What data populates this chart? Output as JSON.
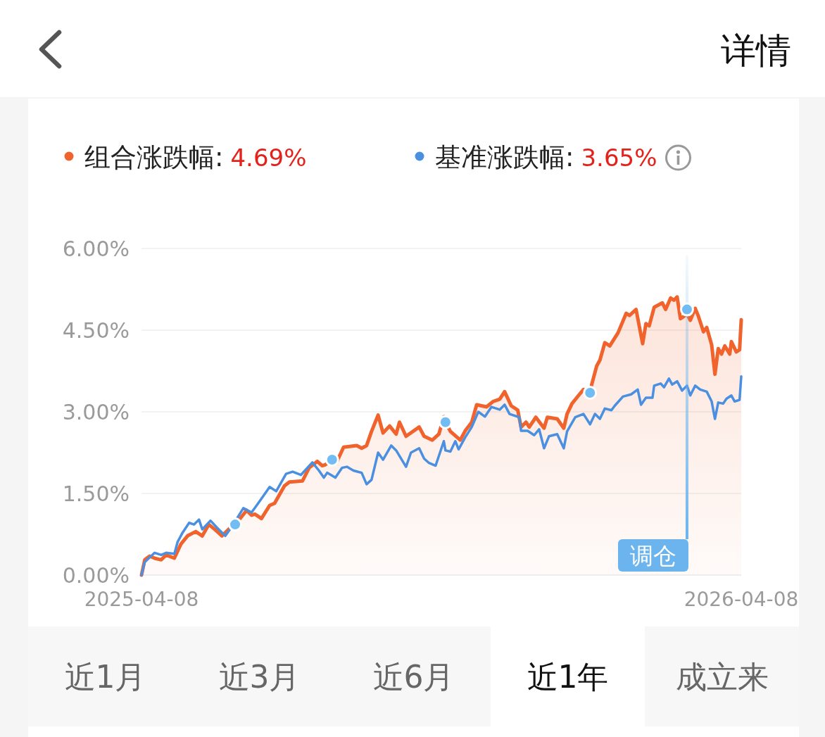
{
  "chart_data": {
    "type": "line",
    "xlim": [
      "2025-04-08",
      "2026-04-08"
    ],
    "xticks": [
      "2025-04-08",
      "2026-04-08"
    ],
    "ylim": [
      0,
      6
    ],
    "yticks": [
      {
        "value": 0,
        "label": "0.00%"
      },
      {
        "value": 1.5,
        "label": "1.50%"
      },
      {
        "value": 3,
        "label": "3.00%"
      },
      {
        "value": 4.5,
        "label": "4.50%"
      },
      {
        "value": 6,
        "label": "6.00%"
      }
    ],
    "grid": "y",
    "legend": "top left",
    "series": [
      {
        "name": "组合涨跌幅:",
        "type": "area",
        "color": "#f0632d",
        "x": [
          "2025-04-08",
          "2025-04-10",
          "2025-04-13",
          "2025-04-16",
          "2025-04-20",
          "2025-04-23",
          "2025-04-28",
          "2025-05-02",
          "2025-05-06",
          "2025-05-11",
          "2025-05-15",
          "2025-05-19",
          "2025-05-23",
          "2025-05-27",
          "2025-06-01",
          "2025-06-04",
          "2025-06-07",
          "2025-06-11",
          "2025-06-14",
          "2025-06-16",
          "2025-06-20",
          "2025-06-25",
          "2025-06-28",
          "2025-07-04",
          "2025-07-07",
          "2025-07-15",
          "2025-07-19",
          "2025-07-24",
          "2025-07-27",
          "2025-07-29",
          "2025-08-02",
          "2025-08-05",
          "2025-08-09",
          "2025-08-17",
          "2025-08-20",
          "2025-08-23",
          "2025-08-26",
          "2025-08-30",
          "2025-09-02",
          "2025-09-06",
          "2025-09-10",
          "2025-09-12",
          "2025-09-16",
          "2025-09-24",
          "2025-09-27",
          "2025-10-02",
          "2025-10-06",
          "2025-10-09",
          "2025-10-10",
          "2025-10-13",
          "2025-10-19",
          "2025-10-22",
          "2025-10-26",
          "2025-10-29",
          "2025-11-04",
          "2025-11-08",
          "2025-11-12",
          "2025-11-15",
          "2025-11-19",
          "2025-11-23",
          "2025-11-25",
          "2025-11-28",
          "2025-11-30",
          "2025-12-04",
          "2025-12-09",
          "2025-12-11",
          "2025-12-17",
          "2025-12-21",
          "2025-12-23",
          "2025-12-26",
          "2025-12-30",
          "2026-01-02",
          "2026-01-06",
          "2026-01-07",
          "2026-01-10",
          "2026-01-12",
          "2026-01-15",
          "2026-01-18",
          "2026-01-23",
          "2026-01-28",
          "2026-01-30",
          "2026-02-03",
          "2026-02-07",
          "2026-02-09",
          "2026-02-11",
          "2026-02-14",
          "2026-02-19",
          "2026-02-21",
          "2026-02-24",
          "2026-02-26",
          "2026-02-28",
          "2026-03-02",
          "2026-03-04",
          "2026-03-06",
          "2026-03-08",
          "2026-03-11",
          "2026-03-13",
          "2026-03-16",
          "2026-03-18",
          "2026-03-21",
          "2026-03-23",
          "2026-03-25",
          "2026-03-27",
          "2026-03-29",
          "2026-04-01",
          "2026-04-02",
          "2026-04-05",
          "2026-04-07",
          "2026-04-08"
        ],
        "values": [
          0.0,
          0.28,
          0.35,
          0.31,
          0.28,
          0.37,
          0.31,
          0.57,
          0.72,
          0.8,
          0.72,
          0.93,
          0.83,
          0.72,
          0.87,
          0.93,
          1.04,
          1.19,
          1.1,
          1.12,
          1.04,
          1.28,
          1.32,
          1.64,
          1.71,
          1.73,
          1.97,
          2.09,
          2.01,
          2.03,
          2.12,
          2.09,
          2.35,
          2.38,
          2.33,
          2.38,
          2.64,
          2.94,
          2.61,
          2.74,
          2.59,
          2.81,
          2.55,
          2.72,
          2.55,
          2.48,
          2.59,
          2.91,
          2.81,
          2.64,
          2.48,
          2.65,
          2.81,
          3.13,
          3.09,
          3.19,
          3.23,
          3.37,
          3.11,
          3.03,
          2.72,
          2.81,
          2.72,
          2.9,
          2.7,
          2.9,
          2.87,
          2.7,
          2.96,
          3.15,
          3.3,
          3.41,
          3.35,
          3.5,
          3.84,
          3.95,
          4.27,
          4.21,
          4.45,
          4.81,
          4.77,
          4.88,
          4.25,
          4.62,
          4.58,
          4.92,
          5.0,
          4.88,
          5.09,
          5.05,
          5.11,
          4.71,
          4.75,
          4.8,
          4.68,
          4.9,
          4.75,
          4.47,
          4.55,
          4.23,
          3.69,
          4.16,
          4.06,
          4.21,
          4.06,
          4.29,
          4.1,
          4.14,
          4.69
        ]
      },
      {
        "name": "基准涨跌幅:",
        "color": "#4a8fe0",
        "x": [
          "2025-04-08",
          "2025-04-10",
          "2025-04-16",
          "2025-04-20",
          "2025-04-23",
          "2025-04-28",
          "2025-04-30",
          "2025-05-03",
          "2025-05-07",
          "2025-05-10",
          "2025-05-13",
          "2025-05-15",
          "2025-05-20",
          "2025-05-24",
          "2025-05-29",
          "2025-06-02",
          "2025-06-09",
          "2025-06-14",
          "2025-06-19",
          "2025-06-25",
          "2025-06-29",
          "2025-07-05",
          "2025-07-09",
          "2025-07-14",
          "2025-07-21",
          "2025-07-25",
          "2025-07-28",
          "2025-07-30",
          "2025-08-04",
          "2025-08-08",
          "2025-08-11",
          "2025-08-15",
          "2025-08-20",
          "2025-08-23",
          "2025-08-26",
          "2025-08-30",
          "2025-09-02",
          "2025-09-07",
          "2025-09-10",
          "2025-09-16",
          "2025-09-19",
          "2025-09-24",
          "2025-09-27",
          "2025-09-30",
          "2025-10-04",
          "2025-10-09",
          "2025-10-10",
          "2025-10-13",
          "2025-10-16",
          "2025-10-18",
          "2025-10-22",
          "2025-10-26",
          "2025-10-30",
          "2025-11-03",
          "2025-11-07",
          "2025-11-12",
          "2025-11-15",
          "2025-11-18",
          "2025-11-24",
          "2025-11-25",
          "2025-11-29",
          "2025-12-03",
          "2025-12-06",
          "2025-12-09",
          "2025-12-12",
          "2025-12-17",
          "2025-12-21",
          "2025-12-23",
          "2025-12-28",
          "2026-01-02",
          "2026-01-06",
          "2026-01-09",
          "2026-01-12",
          "2026-01-15",
          "2026-01-19",
          "2026-01-21",
          "2026-01-26",
          "2026-01-31",
          "2026-02-04",
          "2026-02-06",
          "2026-02-09",
          "2026-02-13",
          "2026-02-14",
          "2026-02-18",
          "2026-02-20",
          "2026-02-23",
          "2026-02-25",
          "2026-02-28",
          "2026-03-03",
          "2026-03-06",
          "2026-03-08",
          "2026-03-11",
          "2026-03-14",
          "2026-03-18",
          "2026-03-21",
          "2026-03-23",
          "2026-03-25",
          "2026-03-28",
          "2026-03-30",
          "2026-04-02",
          "2026-04-04",
          "2026-04-07",
          "2026-04-08"
        ],
        "values": [
          0.0,
          0.24,
          0.41,
          0.37,
          0.41,
          0.39,
          0.61,
          0.78,
          0.96,
          0.93,
          1.02,
          0.84,
          1.0,
          0.87,
          0.72,
          0.89,
          1.23,
          1.15,
          1.36,
          1.62,
          1.54,
          1.86,
          1.9,
          1.84,
          2.07,
          1.92,
          1.79,
          1.88,
          1.79,
          1.97,
          1.99,
          1.92,
          1.88,
          1.67,
          1.75,
          2.25,
          2.12,
          2.38,
          2.29,
          1.99,
          2.25,
          2.33,
          2.14,
          2.06,
          2.01,
          2.46,
          2.29,
          2.27,
          2.46,
          2.31,
          2.53,
          2.72,
          3.0,
          2.91,
          3.09,
          3.04,
          3.13,
          2.96,
          2.9,
          2.65,
          2.65,
          2.57,
          2.68,
          2.33,
          2.55,
          2.59,
          2.33,
          2.64,
          2.9,
          2.96,
          2.77,
          2.96,
          2.87,
          3.06,
          3.03,
          3.11,
          3.28,
          3.32,
          3.41,
          3.13,
          3.26,
          3.26,
          3.48,
          3.52,
          3.45,
          3.61,
          3.5,
          3.56,
          3.39,
          3.48,
          3.3,
          3.48,
          3.41,
          3.37,
          3.19,
          2.87,
          3.17,
          3.15,
          3.24,
          3.3,
          3.19,
          3.22,
          3.65
        ]
      },
      {
        "type": "scatter",
        "color": "#72bcf4",
        "marker": "circle",
        "x": [
          "2025-06-04",
          "2025-08-02",
          "2025-10-10",
          "2026-01-06",
          "2026-03-06"
        ],
        "values": [
          0.93,
          2.12,
          2.81,
          3.35,
          4.88
        ]
      }
    ],
    "ref_lines": [
      {
        "axis": "x",
        "value": "2026-03-06",
        "label": "调仓",
        "color": "#6cb4ee"
      }
    ],
    "annotations": [
      "4.69%",
      "3.65%",
      "详情",
      "近1月",
      "近3月",
      "近6月",
      "近1年",
      "成立来"
    ]
  }
}
